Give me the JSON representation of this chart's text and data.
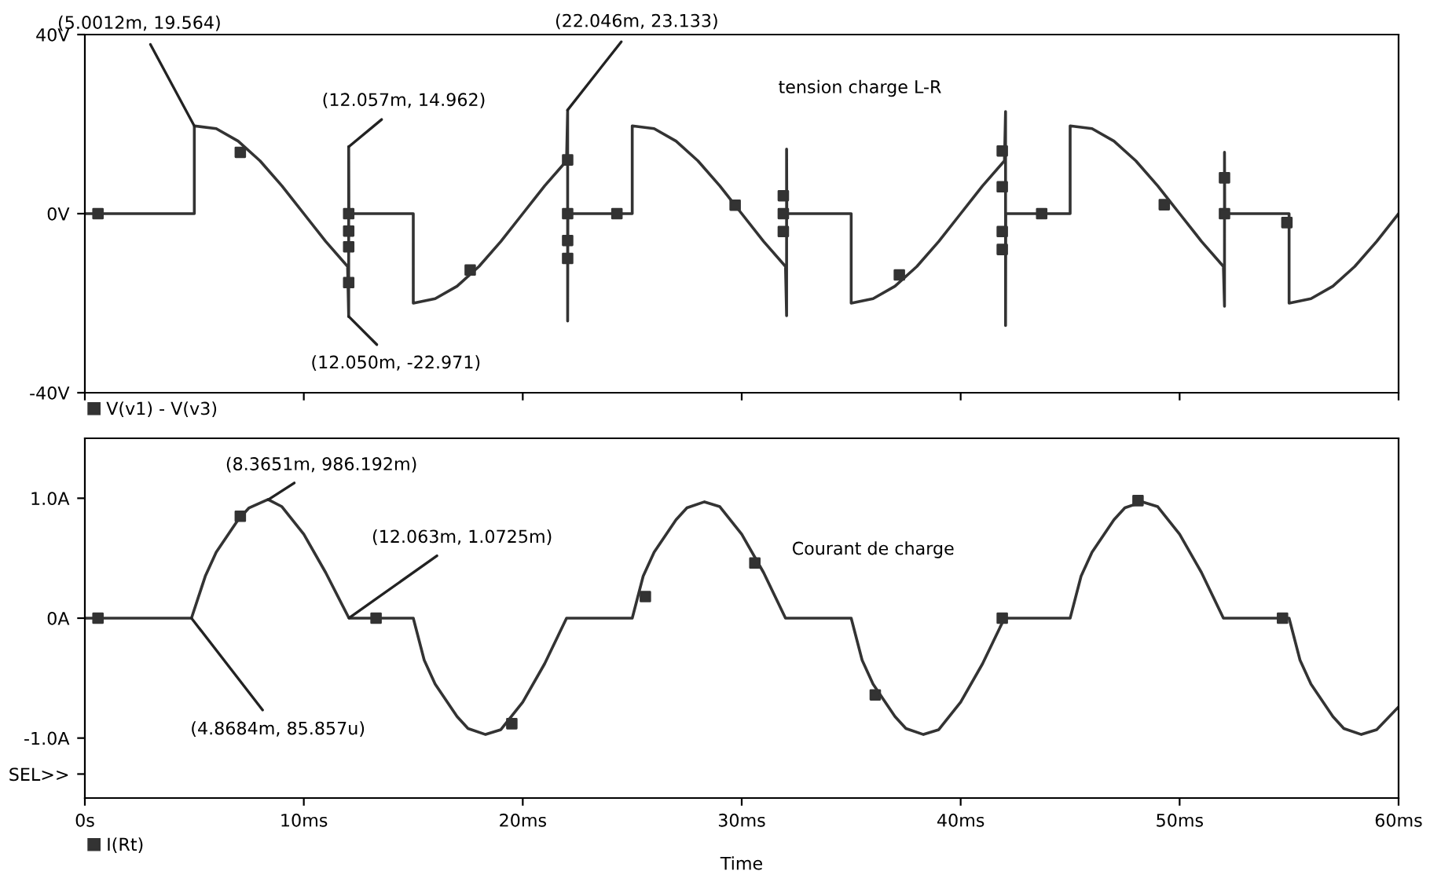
{
  "chart_data": [
    {
      "type": "line",
      "tick_labels": "y",
      "legend": "bottom left",
      "xlim": [
        0,
        60
      ],
      "xticks": [
        {
          "value": 0,
          "label": null
        },
        {
          "value": 10,
          "label": null
        },
        {
          "value": 20,
          "label": null
        },
        {
          "value": 30,
          "label": null
        },
        {
          "value": 40,
          "label": null
        },
        {
          "value": 50,
          "label": null
        },
        {
          "value": 60,
          "label": null
        }
      ],
      "ylim": [
        -40,
        40
      ],
      "yticks": [
        {
          "value": -40,
          "label": "-40V"
        },
        {
          "value": 0,
          "label": "0V"
        },
        {
          "value": 40,
          "label": "40V"
        }
      ],
      "series": [
        {
          "name": "V(v1) - V(v3)",
          "color": "#333333",
          "x": [
            0,
            5,
            5,
            6,
            7,
            8,
            9,
            10,
            11,
            12,
            12.05,
            12.05,
            12.06,
            15,
            15,
            16,
            17,
            18,
            19,
            20,
            21,
            22,
            22.05,
            22.05,
            22.06,
            25,
            25,
            26,
            27,
            28,
            29,
            30,
            31,
            32,
            32.05,
            32.05,
            32.06,
            35,
            35,
            36,
            37,
            38,
            39,
            40,
            41,
            42,
            42.05,
            42.05,
            42.06,
            45,
            45,
            46,
            47,
            48,
            49,
            50,
            51,
            52,
            52.05,
            52.05,
            52.06,
            55,
            55,
            56,
            57,
            58,
            59,
            60
          ],
          "values": [
            0,
            0,
            19.6,
            19.0,
            16.2,
            11.8,
            6.2,
            0,
            -6.2,
            -11.8,
            -23.0,
            15.0,
            0,
            0,
            -20,
            -19.0,
            -16.2,
            -11.8,
            -6.2,
            0,
            6.2,
            11.8,
            23.1,
            -24,
            0,
            0,
            19.6,
            19.0,
            16.2,
            11.8,
            6.2,
            0,
            -6.2,
            -11.8,
            -22.8,
            14.4,
            0,
            0,
            -20,
            -19.0,
            -16.2,
            -11.8,
            -6.2,
            0,
            6.2,
            11.8,
            22.8,
            -25,
            0,
            0,
            19.6,
            19.0,
            16.2,
            11.8,
            6.2,
            0,
            -6.2,
            -11.8,
            -20.7,
            13.7,
            0,
            0,
            -20,
            -19.0,
            -16.2,
            -11.8,
            -6.2,
            0
          ]
        },
        {
          "type": "scatter",
          "color": "#333333",
          "marker": "square",
          "x": [
            0.6,
            7.1,
            12.05,
            12.05,
            12.05,
            12.05,
            17.6,
            22.05,
            22.05,
            22.05,
            22.05,
            24.3,
            29.7,
            31.9,
            31.9,
            31.9,
            37.2,
            41.9,
            41.9,
            41.9,
            41.9,
            43.7,
            49.3,
            52.05,
            52.05,
            54.9
          ],
          "values": [
            0,
            13.7,
            0,
            -3.9,
            -7.4,
            -15.4,
            -12.6,
            12,
            0,
            -6,
            -10,
            0,
            1.9,
            4,
            0,
            -4,
            -13.7,
            14,
            6,
            -4,
            -8,
            0,
            2,
            8,
            0,
            -2
          ]
        }
      ],
      "annotations": [
        {
          "text": "(5.0012m, 19.564)",
          "x": 5.0012,
          "y": 19.564
        },
        {
          "text": "(12.057m, 14.962)",
          "x": 12.057,
          "y": 14.962
        },
        {
          "text": "(22.046m, 23.133)",
          "x": 22.046,
          "y": 23.133
        },
        {
          "text": "(12.050m, -22.971)",
          "x": 12.05,
          "y": -22.971
        },
        "tension charge L-R"
      ]
    },
    {
      "type": "line",
      "legend": "bottom left",
      "xlabel": "Time",
      "xlim": [
        0,
        60
      ],
      "xticks": [
        {
          "value": 0,
          "label": "0s"
        },
        {
          "value": 10,
          "label": "10ms"
        },
        {
          "value": 20,
          "label": "20ms"
        },
        {
          "value": 30,
          "label": "30ms"
        },
        {
          "value": 40,
          "label": "40ms"
        },
        {
          "value": 50,
          "label": "50ms"
        },
        {
          "value": 60,
          "label": "60ms"
        }
      ],
      "ylim": [
        -1.5,
        1.5
      ],
      "yticks": [
        {
          "value": -1.3,
          "label": "SEL>>"
        },
        {
          "value": -1.0,
          "label": "-1.0A"
        },
        {
          "value": 0,
          "label": "0A"
        },
        {
          "value": 1.0,
          "label": "1.0A"
        }
      ],
      "series": [
        {
          "name": "I(Rt)",
          "color": "#333333",
          "x": [
            0,
            4.8684,
            5.5,
            6,
            7,
            7.5,
            8.3651,
            9,
            10,
            11,
            12.063,
            15,
            15.5,
            16,
            17,
            17.5,
            18.3,
            19,
            20,
            21,
            22,
            25,
            25.5,
            26,
            27,
            27.5,
            28.3,
            29,
            30,
            31,
            32,
            35,
            35.5,
            36,
            37,
            37.5,
            38.3,
            39,
            40,
            41,
            42,
            45,
            45.5,
            46,
            47,
            47.5,
            48.3,
            49,
            50,
            51,
            52,
            55,
            55.5,
            56,
            57,
            57.5,
            58.3,
            59,
            60
          ],
          "values": [
            0,
            0,
            0.35,
            0.55,
            0.82,
            0.92,
            0.99,
            0.93,
            0.7,
            0.38,
            0,
            0,
            -0.35,
            -0.55,
            -0.82,
            -0.92,
            -0.97,
            -0.93,
            -0.7,
            -0.38,
            0,
            0,
            0.35,
            0.55,
            0.82,
            0.92,
            0.97,
            0.93,
            0.7,
            0.38,
            0,
            0,
            -0.35,
            -0.55,
            -0.82,
            -0.92,
            -0.97,
            -0.93,
            -0.7,
            -0.38,
            0,
            0,
            0.35,
            0.55,
            0.82,
            0.92,
            0.97,
            0.93,
            0.7,
            0.38,
            0,
            0,
            -0.35,
            -0.55,
            -0.82,
            -0.92,
            -0.97,
            -0.93,
            -0.74
          ]
        },
        {
          "type": "scatter",
          "color": "#333333",
          "marker": "square",
          "x": [
            0.6,
            7.1,
            13.3,
            19.5,
            25.6,
            30.6,
            36.1,
            41.9,
            48.1,
            54.7
          ],
          "values": [
            0,
            0.85,
            0,
            -0.88,
            0.18,
            0.46,
            -0.64,
            0,
            0.98,
            0
          ]
        }
      ],
      "annotations": [
        {
          "text": "(8.3651m, 986.192m)",
          "x": 8.3651,
          "y": 0.986192
        },
        {
          "text": "(12.063m, 1.0725m)",
          "x": 12.063,
          "y": 0.0010725
        },
        {
          "text": "(4.8684m, 85.857u)",
          "x": 4.8684,
          "y": 8.5857e-05
        },
        "Courant de charge"
      ]
    }
  ]
}
